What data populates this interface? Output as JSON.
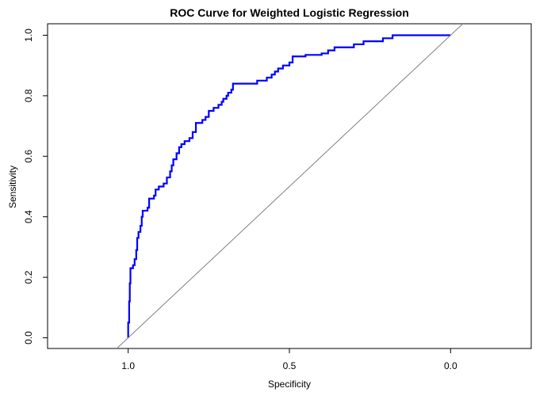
{
  "chart_data": {
    "type": "line",
    "title": "ROC Curve for Weighted Logistic Regression",
    "xlabel": "Specificity",
    "ylabel": "Sensitivity",
    "x_reversed": true,
    "xlim": [
      1.25,
      -0.25
    ],
    "ylim": [
      0.0,
      1.0
    ],
    "xticks": [
      1.0,
      0.5,
      0.0
    ],
    "xtick_labels": [
      "1.0",
      "0.5",
      "0.0"
    ],
    "yticks": [
      0.0,
      0.2,
      0.4,
      0.6,
      0.8,
      1.0
    ],
    "ytick_labels": [
      "0.0",
      "0.2",
      "0.4",
      "0.6",
      "0.8",
      "1.0"
    ],
    "grid": false,
    "series": [
      {
        "color": "#0000ff",
        "style": "step",
        "points": [
          [
            1.0,
            0.0
          ],
          [
            1.0,
            0.05
          ],
          [
            0.997,
            0.12
          ],
          [
            0.995,
            0.18
          ],
          [
            0.993,
            0.23
          ],
          [
            0.985,
            0.24
          ],
          [
            0.98,
            0.26
          ],
          [
            0.975,
            0.29
          ],
          [
            0.972,
            0.33
          ],
          [
            0.968,
            0.35
          ],
          [
            0.962,
            0.37
          ],
          [
            0.958,
            0.4
          ],
          [
            0.955,
            0.42
          ],
          [
            0.94,
            0.43
          ],
          [
            0.935,
            0.46
          ],
          [
            0.92,
            0.47
          ],
          [
            0.915,
            0.49
          ],
          [
            0.905,
            0.5
          ],
          [
            0.89,
            0.51
          ],
          [
            0.88,
            0.53
          ],
          [
            0.87,
            0.55
          ],
          [
            0.865,
            0.57
          ],
          [
            0.86,
            0.59
          ],
          [
            0.85,
            0.61
          ],
          [
            0.842,
            0.63
          ],
          [
            0.835,
            0.64
          ],
          [
            0.825,
            0.65
          ],
          [
            0.81,
            0.66
          ],
          [
            0.8,
            0.68
          ],
          [
            0.79,
            0.71
          ],
          [
            0.77,
            0.72
          ],
          [
            0.76,
            0.73
          ],
          [
            0.75,
            0.75
          ],
          [
            0.735,
            0.76
          ],
          [
            0.72,
            0.77
          ],
          [
            0.71,
            0.78
          ],
          [
            0.705,
            0.79
          ],
          [
            0.695,
            0.8
          ],
          [
            0.69,
            0.81
          ],
          [
            0.68,
            0.82
          ],
          [
            0.675,
            0.84
          ],
          [
            0.62,
            0.84
          ],
          [
            0.6,
            0.85
          ],
          [
            0.57,
            0.86
          ],
          [
            0.555,
            0.87
          ],
          [
            0.545,
            0.88
          ],
          [
            0.535,
            0.89
          ],
          [
            0.52,
            0.9
          ],
          [
            0.5,
            0.91
          ],
          [
            0.49,
            0.93
          ],
          [
            0.45,
            0.935
          ],
          [
            0.4,
            0.94
          ],
          [
            0.38,
            0.95
          ],
          [
            0.36,
            0.96
          ],
          [
            0.3,
            0.97
          ],
          [
            0.27,
            0.98
          ],
          [
            0.21,
            0.99
          ],
          [
            0.18,
            1.0
          ],
          [
            0.0,
            1.0
          ]
        ]
      },
      {
        "color": "#808080",
        "style": "reference",
        "points": [
          [
            1.05,
            -0.05
          ],
          [
            -0.04,
            1.04
          ]
        ]
      }
    ]
  }
}
